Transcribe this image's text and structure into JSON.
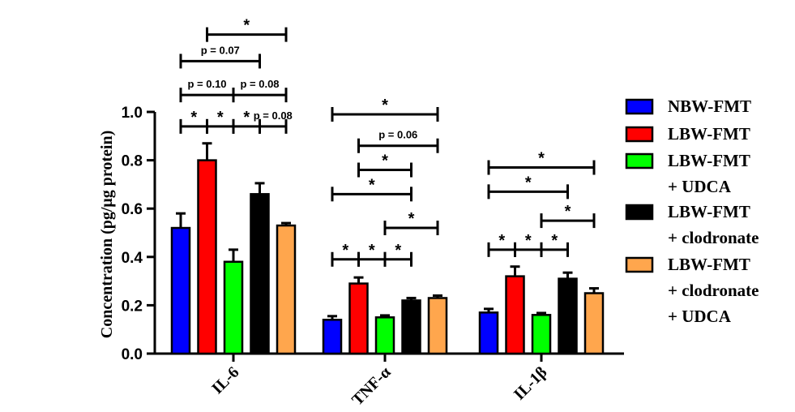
{
  "chart_data": {
    "type": "bar",
    "ylabel": "Concentration (pg/μg protein)",
    "ylim": [
      0,
      1.0
    ],
    "yticks": [
      "0.0",
      "0.2",
      "0.4",
      "0.6",
      "0.8",
      "1.0"
    ],
    "categories": [
      "IL-6",
      "TNF-α",
      "IL-1β"
    ],
    "series": [
      {
        "name": "NBW-FMT",
        "name_lines": [
          "NBW-FMT"
        ],
        "color": "#0000ff",
        "values": [
          0.52,
          0.14,
          0.17
        ],
        "errors": [
          0.06,
          0.015,
          0.015
        ]
      },
      {
        "name": "LBW-FMT",
        "name_lines": [
          "LBW-FMT"
        ],
        "color": "#ff0000",
        "values": [
          0.8,
          0.29,
          0.32
        ],
        "errors": [
          0.07,
          0.025,
          0.04
        ]
      },
      {
        "name": "LBW-FMT + UDCA",
        "name_lines": [
          "LBW-FMT",
          "+ UDCA"
        ],
        "color": "#00ff00",
        "values": [
          0.38,
          0.15,
          0.16
        ],
        "errors": [
          0.05,
          0.008,
          0.008
        ]
      },
      {
        "name": "LBW-FMT + clodronate",
        "name_lines": [
          "LBW-FMT",
          "+ clodronate"
        ],
        "color": "#000000",
        "values": [
          0.66,
          0.22,
          0.31
        ],
        "errors": [
          0.045,
          0.01,
          0.025
        ]
      },
      {
        "name": "LBW-FMT + clodronate + UDCA",
        "name_lines": [
          "LBW-FMT",
          "+ clodronate",
          "+ UDCA"
        ],
        "color": "#ffa64d",
        "values": [
          0.53,
          0.23,
          0.25
        ],
        "errors": [
          0.01,
          0.01,
          0.02
        ]
      }
    ],
    "legend_position": "right",
    "annotations": [
      {
        "group": 0,
        "from": 1,
        "to": 4,
        "level": 1.32,
        "label": "*"
      },
      {
        "group": 0,
        "from": 0,
        "to": 3,
        "level": 1.21,
        "label": "p = 0.07"
      },
      {
        "group": 0,
        "from": 0,
        "to": 2,
        "level": 1.07,
        "label": "p = 0.10"
      },
      {
        "group": 0,
        "from": 2,
        "to": 4,
        "level": 1.07,
        "label": "p = 0.08"
      },
      {
        "group": 0,
        "from": 0,
        "to": 1,
        "level": 0.94,
        "label": "*"
      },
      {
        "group": 0,
        "from": 1,
        "to": 2,
        "level": 0.94,
        "label": "*"
      },
      {
        "group": 0,
        "from": 2,
        "to": 3,
        "level": 0.94,
        "label": "*"
      },
      {
        "group": 0,
        "from": 3,
        "to": 4,
        "level": 0.94,
        "label": "p = 0.08"
      },
      {
        "group": 1,
        "from": 0,
        "to": 4,
        "level": 0.99,
        "label": "*"
      },
      {
        "group": 1,
        "from": 1,
        "to": 4,
        "level": 0.86,
        "label": "p = 0.06"
      },
      {
        "group": 1,
        "from": 1,
        "to": 3,
        "level": 0.76,
        "label": "*"
      },
      {
        "group": 1,
        "from": 0,
        "to": 3,
        "level": 0.66,
        "label": "*"
      },
      {
        "group": 1,
        "from": 2,
        "to": 4,
        "level": 0.52,
        "label": "*"
      },
      {
        "group": 1,
        "from": 0,
        "to": 1,
        "level": 0.39,
        "label": "*"
      },
      {
        "group": 1,
        "from": 1,
        "to": 2,
        "level": 0.39,
        "label": "*"
      },
      {
        "group": 1,
        "from": 2,
        "to": 3,
        "level": 0.39,
        "label": "*"
      },
      {
        "group": 2,
        "from": 0,
        "to": 4,
        "level": 0.77,
        "label": "*"
      },
      {
        "group": 2,
        "from": 0,
        "to": 3,
        "level": 0.67,
        "label": "*"
      },
      {
        "group": 2,
        "from": 2,
        "to": 4,
        "level": 0.55,
        "label": "*"
      },
      {
        "group": 2,
        "from": 0,
        "to": 1,
        "level": 0.43,
        "label": "*"
      },
      {
        "group": 2,
        "from": 1,
        "to": 2,
        "level": 0.43,
        "label": "*"
      },
      {
        "group": 2,
        "from": 2,
        "to": 3,
        "level": 0.43,
        "label": "*"
      }
    ]
  }
}
